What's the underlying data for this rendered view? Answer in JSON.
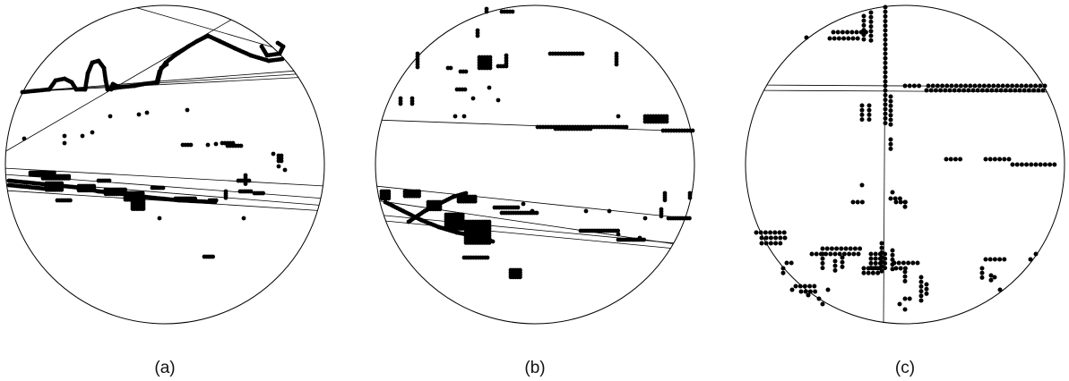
{
  "panels": [
    {
      "label": "(a)"
    },
    {
      "label": "(b)"
    },
    {
      "label": "(c)"
    }
  ],
  "colors": {
    "dot": "#000000",
    "line": "#000000",
    "circle": "#000000",
    "background": "#ffffff"
  }
}
